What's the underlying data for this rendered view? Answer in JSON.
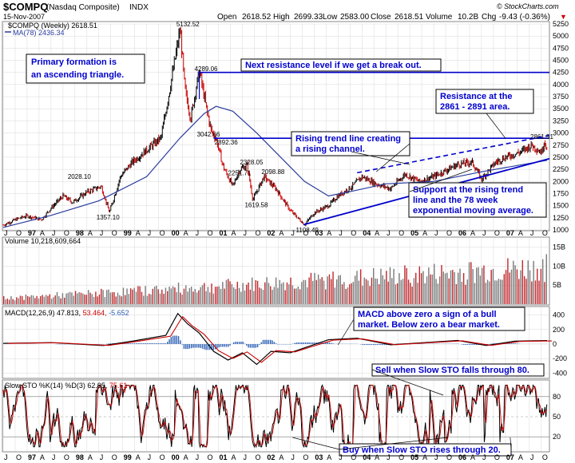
{
  "header": {
    "symbol": "$COMPQ",
    "name": "(Nasdaq Composite)",
    "exchange": "INDX",
    "date": "15-Nov-2007",
    "source": "© StockCharts.com",
    "open_label": "Open",
    "open": "2618.52",
    "high_label": "High",
    "high": "2699.33",
    "low_label": "Low",
    "low": "2583.00",
    "close_label": "Close",
    "close": "2618.51",
    "volume_label": "Volume",
    "volume": "10.2B",
    "chg_label": "Chg",
    "chg": "-9.43 (-0.36%)",
    "chg_arrow": "▼",
    "legend_series": "$COMPQ (Weekly) 2618.51",
    "legend_ma": "MA(78) 2436.34"
  },
  "colors": {
    "price_up": "#000000",
    "price_down": "#cc0000",
    "ma": "#2a3c9e",
    "annotation": "#0000cc",
    "volume_up": "#7a7a7a",
    "volume_down": "#c0282d",
    "macd_hist": "#2c5fb5",
    "sto_k": "#000000",
    "sto_d": "#cc0000",
    "grid": "#d8d8d8"
  },
  "chart_data": {
    "type": "line",
    "x_range": [
      "1996-07",
      "2007-11"
    ],
    "x_labels": [
      "J",
      "O",
      "97",
      "A",
      "J",
      "O",
      "98",
      "A",
      "J",
      "O",
      "99",
      "A",
      "J",
      "O",
      "00",
      "A",
      "J",
      "O",
      "01",
      "A",
      "J",
      "O",
      "02",
      "A",
      "J",
      "O",
      "03",
      "A",
      "J",
      "O",
      "04",
      "A",
      "J",
      "O",
      "05",
      "A",
      "J",
      "O",
      "06",
      "A",
      "J",
      "O",
      "07",
      "A",
      "J",
      "O"
    ],
    "price": {
      "ylim": [
        1000,
        5250
      ],
      "ticks": [
        1000,
        1250,
        1500,
        1750,
        2000,
        2250,
        2500,
        2750,
        3000,
        3250,
        3500,
        3750,
        4000,
        4250,
        4500,
        4750,
        5000,
        5250
      ],
      "series": [
        {
          "name": "$COMPQ (Weekly)",
          "points": [
            [
              1996.5,
              1100
            ],
            [
              1996.8,
              1230
            ],
            [
              1997.0,
              1290
            ],
            [
              1997.3,
              1210
            ],
            [
              1997.5,
              1450
            ],
            [
              1997.75,
              1700
            ],
            [
              1997.95,
              1570
            ],
            [
              1998.25,
              1780
            ],
            [
              1998.55,
              1900
            ],
            [
              1998.72,
              1357.1
            ],
            [
              1998.95,
              2100
            ],
            [
              1999.2,
              2400
            ],
            [
              1999.5,
              2650
            ],
            [
              1999.8,
              2900
            ],
            [
              2000.0,
              4000
            ],
            [
              2000.2,
              5132.52
            ],
            [
              2000.3,
              3900
            ],
            [
              2000.42,
              3300
            ],
            [
              2000.6,
              4289.06
            ],
            [
              2000.75,
              3500
            ],
            [
              2000.85,
              3042.66
            ],
            [
              2000.95,
              2892.36
            ],
            [
              2001.1,
              2300
            ],
            [
              2001.3,
              1900
            ],
            [
              2001.45,
              2251.71
            ],
            [
              2001.6,
              2328.05
            ],
            [
              2001.72,
              1619.58
            ],
            [
              2001.95,
              2098.88
            ],
            [
              2002.2,
              1850
            ],
            [
              2002.5,
              1400
            ],
            [
              2002.8,
              1108.49
            ],
            [
              2003.0,
              1350
            ],
            [
              2003.3,
              1500
            ],
            [
              2003.5,
              1700
            ],
            [
              2003.8,
              1900
            ],
            [
              2004.0,
              2100
            ],
            [
              2004.3,
              1950
            ],
            [
              2004.6,
              1850
            ],
            [
              2004.9,
              2150
            ],
            [
              2005.2,
              2000
            ],
            [
              2005.5,
              2100
            ],
            [
              2005.8,
              2250
            ],
            [
              2006.0,
              2350
            ],
            [
              2006.3,
              2400
            ],
            [
              2006.5,
              2050
            ],
            [
              2006.8,
              2400
            ],
            [
              2007.0,
              2500
            ],
            [
              2007.3,
              2600
            ],
            [
              2007.55,
              2750
            ],
            [
              2007.75,
              2600
            ],
            [
              2007.82,
              2861.51
            ],
            [
              2007.87,
              2618.51
            ]
          ]
        },
        {
          "name": "MA(78)",
          "points": [
            [
              1996.5,
              1050
            ],
            [
              1997.5,
              1300
            ],
            [
              1998.5,
              1600
            ],
            [
              1999.5,
              2100
            ],
            [
              2000.2,
              2900
            ],
            [
              2000.7,
              3400
            ],
            [
              2000.95,
              3550
            ],
            [
              2001.3,
              3450
            ],
            [
              2001.8,
              3000
            ],
            [
              2002.3,
              2500
            ],
            [
              2002.8,
              2000
            ],
            [
              2003.3,
              1700
            ],
            [
              2003.8,
              1800
            ],
            [
              2004.5,
              1950
            ],
            [
              2005.5,
              2000
            ],
            [
              2006.5,
              2200
            ],
            [
              2007.87,
              2436.34
            ]
          ]
        }
      ],
      "price_labels": [
        "5132.52",
        "4289.06",
        "3042.66",
        "2892.36",
        "2328.05",
        "2251.71",
        "2098.88",
        "2028.10",
        "1619.58",
        "1357.10",
        "1108.49",
        "2861.51"
      ],
      "lines": [
        {
          "label": "Next resistance level if we get a break out.",
          "y": 4250
        },
        {
          "label": "Resistance at the 2861 - 2891 area.",
          "y": 2891
        }
      ],
      "annotations": [
        "Primary formation is",
        "an ascending triangle.",
        "Rising trend line creating",
        "a rising channel.",
        "Support at the rising trend",
        "line and the 78 week",
        "exponential moving average."
      ]
    },
    "volume": {
      "label": "Volume 10,218,609,664",
      "ticks": [
        "5B",
        "10B",
        "15B"
      ],
      "tick_values": [
        5,
        10,
        15
      ],
      "ylim": [
        0,
        17
      ]
    },
    "macd": {
      "label": "MACD(12,26,9) 47.813,",
      "signal": "53.464,",
      "hist": "-5.652",
      "ticks": [
        400,
        200,
        0,
        -200,
        -400
      ],
      "ylim": [
        -450,
        450
      ],
      "annotations": [
        "MACD above zero a sign of a bull",
        "market. Below zero a bear market."
      ]
    },
    "sto": {
      "label": "Slow STO %K(14) %D(3) 62.95,",
      "d_value": "75.61",
      "ticks": [
        80,
        50,
        20
      ],
      "ylim": [
        0,
        100
      ],
      "annotations": [
        "Sell when Slow STO falls through 80.",
        "Buy when Slow STO rises through 20."
      ]
    }
  }
}
